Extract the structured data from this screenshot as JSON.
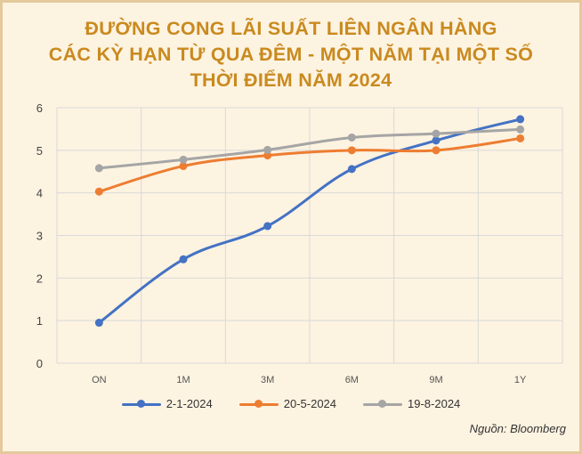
{
  "title_lines": [
    "ĐƯỜNG CONG LÃI SUẤT LIÊN NGÂN HÀNG",
    "CÁC KỲ HẠN TỪ QUA ĐÊM - MỘT NĂM TẠI MỘT SỐ",
    "THỜI ĐIỂM NĂM 2024"
  ],
  "source": "Nguồn: Bloomberg",
  "colors": {
    "title": "#c98a1f",
    "background": "#fdf3e1",
    "border": "#e3c99b",
    "grid": "#d9d9d9"
  },
  "chart_data": {
    "type": "line",
    "categories": [
      "ON",
      "1M",
      "3M",
      "6M",
      "9M",
      "1Y"
    ],
    "ylim": [
      0,
      6
    ],
    "yticks": [
      "0",
      "1",
      "2",
      "3",
      "4",
      "5",
      "6"
    ],
    "grid": true,
    "legend_position": "bottom",
    "series": [
      {
        "name": "2-1-2024",
        "color": "#4472c4",
        "values": [
          0.95,
          2.44,
          3.22,
          4.56,
          5.23,
          5.73
        ]
      },
      {
        "name": "20-5-2024",
        "color": "#ed7d31",
        "values": [
          4.03,
          4.63,
          4.88,
          5.0,
          5.0,
          5.28
        ]
      },
      {
        "name": "19-8-2024",
        "color": "#a5a5a5",
        "values": [
          4.58,
          4.78,
          5.01,
          5.3,
          5.39,
          5.49
        ]
      }
    ]
  }
}
